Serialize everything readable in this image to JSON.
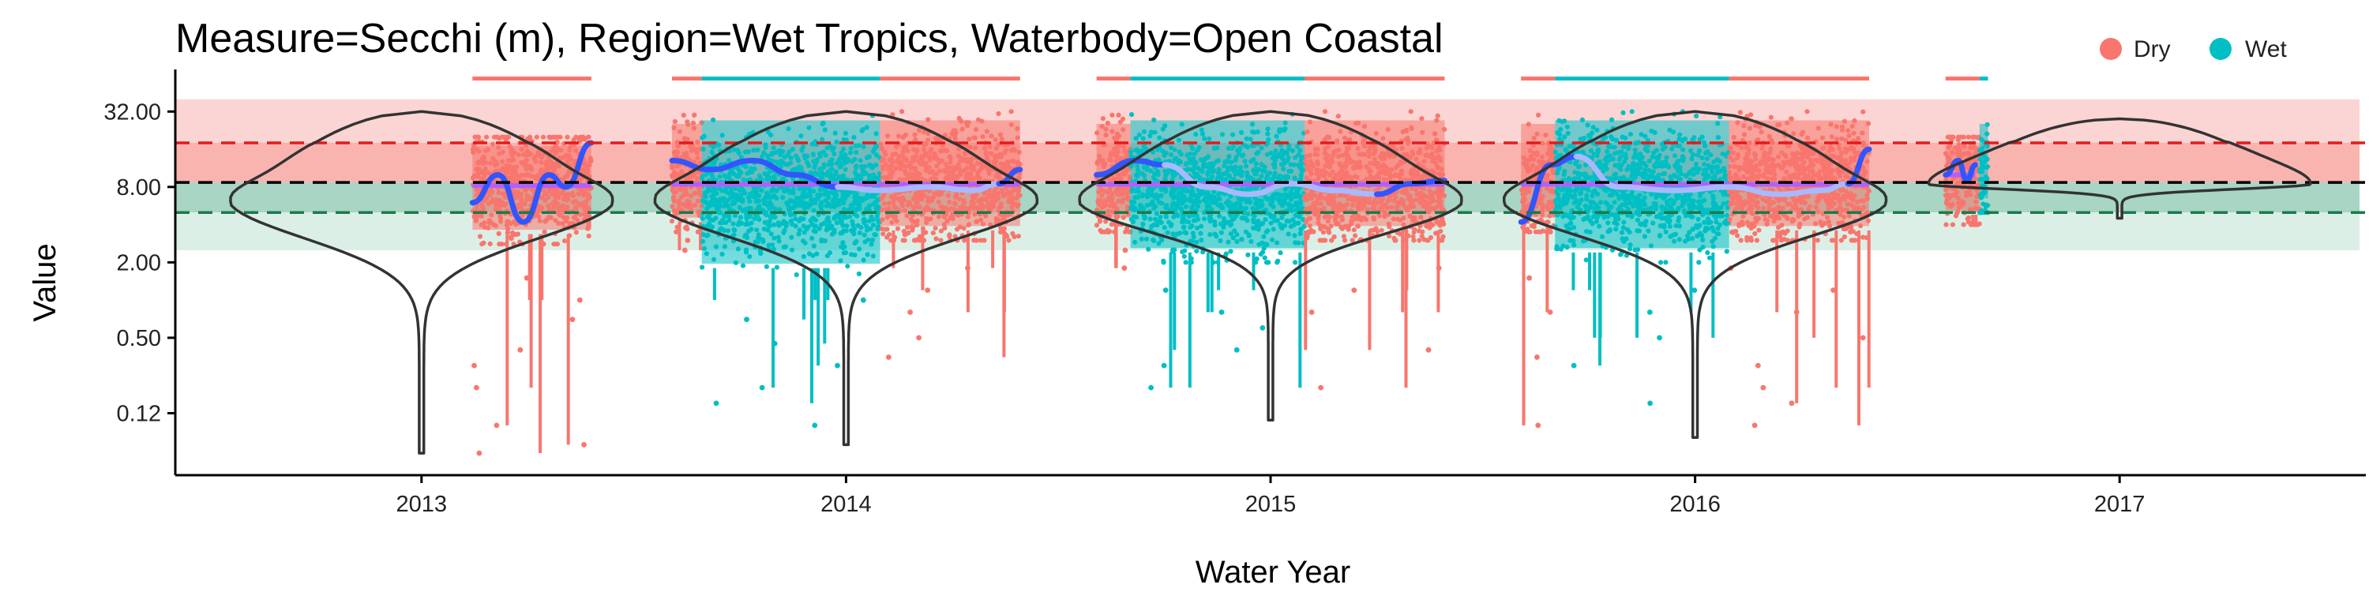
{
  "chart_data": {
    "type": "scatter",
    "title": "Measure=Secchi (m), Region=Wet Tropics, Waterbody=Open Coastal",
    "xlabel": "Water Year",
    "ylabel": "Value",
    "y_scale": "log2",
    "ylim": [
      0.04,
      60
    ],
    "y_ticks": [
      {
        "value": 0.125,
        "label": "0.12"
      },
      {
        "value": 0.5,
        "label": "0.50"
      },
      {
        "value": 2,
        "label": "2.00"
      },
      {
        "value": 8,
        "label": "8.00"
      },
      {
        "value": 32,
        "label": "32.00"
      }
    ],
    "xlim": [
      2012.42,
      2017.58
    ],
    "x_ticks": [
      2013,
      2014,
      2015,
      2016,
      2017
    ],
    "legend": {
      "position": "top-right",
      "entries": [
        {
          "name": "Dry",
          "color": "#F8766D"
        },
        {
          "name": "Wet",
          "color": "#00BFC4"
        }
      ]
    },
    "reference_lines": [
      {
        "value": 18,
        "color": "#e41a1c",
        "style": "dashed"
      },
      {
        "value": 8.7,
        "color": "#000000",
        "style": "dashed"
      },
      {
        "value": 5.0,
        "color": "#1b7a4a",
        "style": "dashed"
      }
    ],
    "bands": [
      {
        "from": 18,
        "to": 40,
        "color": "#fbd5d3"
      },
      {
        "from": 8.7,
        "to": 18,
        "color": "#f9b4b0"
      },
      {
        "from": 5.0,
        "to": 8.7,
        "color": "#a8d5c4"
      },
      {
        "from": 2.5,
        "to": 5.0,
        "color": "#dcefe7"
      }
    ],
    "season_bars": [
      {
        "from": 2013.12,
        "to": 2013.4,
        "season": "Dry"
      },
      {
        "from": 2013.59,
        "to": 2013.66,
        "season": "Dry"
      },
      {
        "from": 2013.66,
        "to": 2014.08,
        "season": "Wet"
      },
      {
        "from": 2014.08,
        "to": 2014.41,
        "season": "Dry"
      },
      {
        "from": 2014.59,
        "to": 2014.67,
        "season": "Dry"
      },
      {
        "from": 2014.67,
        "to": 2015.08,
        "season": "Wet"
      },
      {
        "from": 2015.08,
        "to": 2015.41,
        "season": "Dry"
      },
      {
        "from": 2015.59,
        "to": 2015.67,
        "season": "Dry"
      },
      {
        "from": 2015.67,
        "to": 2016.08,
        "season": "Wet"
      },
      {
        "from": 2016.08,
        "to": 2016.41,
        "season": "Dry"
      },
      {
        "from": 2016.59,
        "to": 2016.67,
        "season": "Dry"
      },
      {
        "from": 2016.67,
        "to": 2016.69,
        "season": "Wet"
      }
    ],
    "data_blocks": [
      {
        "from": 2013.12,
        "to": 2013.4,
        "season": "Dry",
        "median": 8.2,
        "upper": 20,
        "lower": 2.8,
        "outliers": [
          1.5,
          1.0,
          0.7,
          0.4,
          0.3,
          0.2,
          0.1,
          0.07,
          0.06
        ]
      },
      {
        "from": 2013.59,
        "to": 2013.66,
        "season": "Dry",
        "median": 9,
        "upper": 30,
        "lower": 3.5,
        "outliers": [
          3.0,
          2.5
        ]
      },
      {
        "from": 2013.66,
        "to": 2014.08,
        "season": "Wet",
        "median": 7,
        "upper": 32,
        "lower": 1.5,
        "outliers": [
          1.0,
          0.7,
          0.45,
          0.3,
          0.2,
          0.15,
          0.1
        ]
      },
      {
        "from": 2014.08,
        "to": 2014.41,
        "season": "Dry",
        "median": 8.5,
        "upper": 32,
        "lower": 3,
        "outliers": [
          1.8,
          1.2,
          0.8,
          0.5,
          0.35
        ]
      },
      {
        "from": 2014.59,
        "to": 2014.67,
        "season": "Dry",
        "median": 8,
        "upper": 30,
        "lower": 3.5,
        "outliers": [
          2.5,
          1.8
        ]
      },
      {
        "from": 2014.67,
        "to": 2015.08,
        "season": "Wet",
        "median": 7.5,
        "upper": 32,
        "lower": 2,
        "outliers": [
          1.2,
          0.8,
          0.6,
          0.4,
          0.3,
          0.2
        ]
      },
      {
        "from": 2015.08,
        "to": 2015.41,
        "season": "Dry",
        "median": 8,
        "upper": 32,
        "lower": 3,
        "outliers": [
          1.8,
          1.2,
          0.8,
          0.4,
          0.2
        ]
      },
      {
        "from": 2015.59,
        "to": 2015.67,
        "season": "Dry",
        "median": 8,
        "upper": 30,
        "lower": 3.5,
        "outliers": [
          1.5,
          0.8,
          0.35,
          0.1
        ]
      },
      {
        "from": 2015.67,
        "to": 2016.08,
        "season": "Wet",
        "median": 8,
        "upper": 32,
        "lower": 2,
        "outliers": [
          1.2,
          0.8,
          0.5,
          0.3,
          0.15
        ]
      },
      {
        "from": 2016.08,
        "to": 2016.41,
        "season": "Dry",
        "median": 8.5,
        "upper": 32,
        "lower": 3,
        "outliers": [
          1.8,
          1.2,
          0.8,
          0.5,
          0.3,
          0.2,
          0.15,
          0.1
        ]
      },
      {
        "from": 2016.59,
        "to": 2016.67,
        "season": "Dry",
        "median": 10,
        "upper": 20,
        "lower": 4,
        "outliers": []
      },
      {
        "from": 2016.67,
        "to": 2016.69,
        "season": "Wet",
        "median": 12,
        "upper": 30,
        "lower": 5,
        "outliers": []
      }
    ],
    "violins": [
      {
        "year": 2013,
        "min": 0.06,
        "max": 32,
        "mode": 6.5,
        "halfwidth": 0.45
      },
      {
        "year": 2014,
        "min": 0.07,
        "max": 32,
        "mode": 6.5,
        "halfwidth": 0.45
      },
      {
        "year": 2015,
        "min": 0.11,
        "max": 32,
        "mode": 6.5,
        "halfwidth": 0.45
      },
      {
        "year": 2016,
        "min": 0.08,
        "max": 32,
        "mode": 6.5,
        "halfwidth": 0.45
      },
      {
        "year": 2017,
        "min": 4.5,
        "max": 28,
        "mode": 8.5,
        "halfwidth": 0.45
      }
    ],
    "smooth_lines": [
      {
        "color": "#3355ff",
        "points": [
          [
            2013.12,
            6
          ],
          [
            2013.18,
            10
          ],
          [
            2013.24,
            4.2
          ],
          [
            2013.3,
            10
          ],
          [
            2013.34,
            8
          ],
          [
            2013.4,
            18
          ]
        ]
      },
      {
        "color": "#3355ff",
        "points": [
          [
            2013.59,
            13
          ],
          [
            2013.68,
            11
          ],
          [
            2013.78,
            13
          ],
          [
            2013.88,
            10
          ],
          [
            2013.98,
            8
          ]
        ]
      },
      {
        "color": "#aab8ff",
        "points": [
          [
            2013.98,
            8
          ],
          [
            2014.08,
            7.5
          ],
          [
            2014.2,
            8
          ],
          [
            2014.3,
            7.5
          ],
          [
            2014.36,
            8.5
          ]
        ]
      },
      {
        "color": "#3355ff",
        "points": [
          [
            2014.36,
            8.5
          ],
          [
            2014.41,
            11
          ]
        ]
      },
      {
        "color": "#3355ff",
        "points": [
          [
            2014.59,
            10
          ],
          [
            2014.68,
            13
          ],
          [
            2014.75,
            12
          ]
        ]
      },
      {
        "color": "#aab8ff",
        "points": [
          [
            2014.75,
            12
          ],
          [
            2014.85,
            8
          ],
          [
            2014.95,
            7
          ],
          [
            2015.05,
            8.5
          ],
          [
            2015.15,
            7.5
          ],
          [
            2015.25,
            7
          ]
        ]
      },
      {
        "color": "#3355ff",
        "points": [
          [
            2015.25,
            7
          ],
          [
            2015.33,
            8.5
          ],
          [
            2015.41,
            9
          ]
        ]
      },
      {
        "color": "#3355ff",
        "points": [
          [
            2015.59,
            4.2
          ],
          [
            2015.66,
            12
          ],
          [
            2015.72,
            14
          ]
        ]
      },
      {
        "color": "#aab8ff",
        "points": [
          [
            2015.72,
            14
          ],
          [
            2015.82,
            8
          ],
          [
            2015.95,
            7.5
          ],
          [
            2016.08,
            8
          ],
          [
            2016.2,
            7
          ],
          [
            2016.3,
            7.5
          ],
          [
            2016.36,
            8.5
          ]
        ]
      },
      {
        "color": "#3355ff",
        "points": [
          [
            2016.36,
            8.5
          ],
          [
            2016.41,
            16
          ]
        ]
      },
      {
        "color": "#3355ff",
        "points": [
          [
            2016.59,
            10
          ],
          [
            2016.62,
            13
          ],
          [
            2016.64,
            9
          ],
          [
            2016.66,
            12
          ]
        ]
      }
    ],
    "trend_segments": [
      {
        "from": 2013.12,
        "to": 2013.4,
        "value": 8.2
      },
      {
        "from": 2013.59,
        "to": 2014.41,
        "value": 8.4
      },
      {
        "from": 2014.59,
        "to": 2015.41,
        "value": 8.4
      },
      {
        "from": 2015.59,
        "to": 2016.41,
        "value": 8.4
      },
      {
        "from": 2016.59,
        "to": 2016.66,
        "value": 10
      }
    ]
  }
}
